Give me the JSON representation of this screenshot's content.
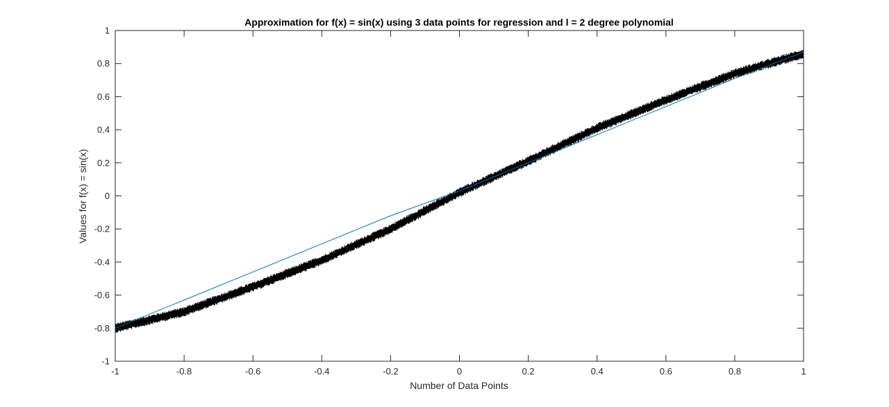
{
  "chart_data": {
    "type": "line",
    "title": "Approximation for f(x) = sin(x) using 3 data points for regression and l =  2 degree polynomial",
    "xlabel": "Number of Data Points",
    "ylabel": "Values for f(x) = sin(x)",
    "xlim": [
      -1,
      1
    ],
    "ylim": [
      -1,
      1
    ],
    "xticks": [
      "-1",
      "-0.8",
      "-0.6",
      "-0.4",
      "-0.2",
      "0",
      "0.2",
      "0.4",
      "0.6",
      "0.8",
      "1"
    ],
    "yticks": [
      "1",
      "0.8",
      "0.6",
      "0.4",
      "0.2",
      "0",
      "-0.2",
      "-0.4",
      "-0.6",
      "-0.8",
      "-1"
    ],
    "grid": false,
    "legend": "none",
    "series": [
      {
        "color": "#000000",
        "function": "sin(x)",
        "noise_band": 0.06,
        "x": [
          -1,
          -0.8,
          -0.6,
          -0.4,
          -0.2,
          0,
          0.2,
          0.4,
          0.6,
          0.8,
          1
        ],
        "y": [
          -0.8,
          -0.7,
          -0.55,
          -0.39,
          -0.2,
          0.02,
          0.21,
          0.41,
          0.58,
          0.74,
          0.86
        ]
      },
      {
        "color": "#0072bd",
        "x": [
          -1,
          -0.8,
          -0.6,
          -0.4,
          -0.2,
          0,
          0.2,
          0.4,
          0.6,
          0.8,
          1
        ],
        "y": [
          -0.8,
          -0.63,
          -0.46,
          -0.29,
          -0.12,
          0.03,
          0.2,
          0.37,
          0.54,
          0.71,
          0.87
        ]
      }
    ]
  }
}
